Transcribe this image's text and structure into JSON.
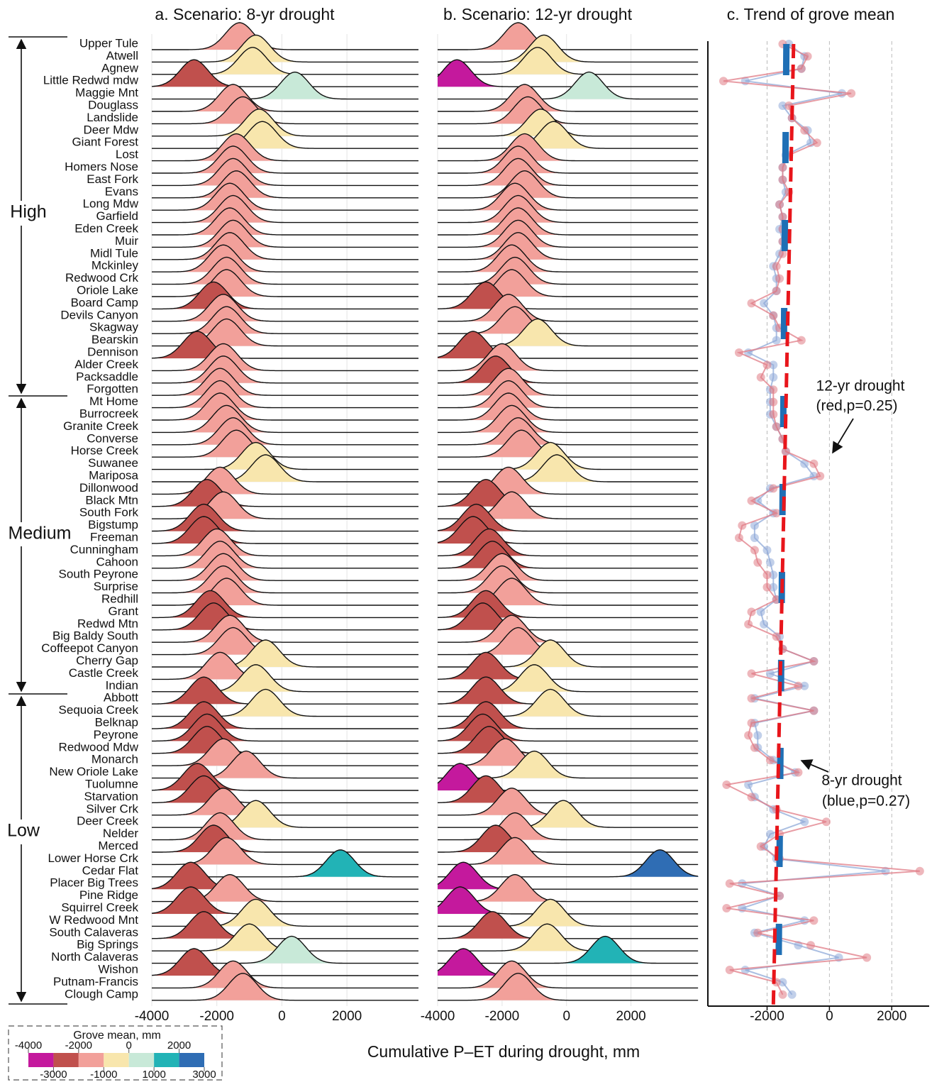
{
  "chart_data": [
    {
      "type": "ridgeline",
      "title": "a. Scenario: 8-yr drought",
      "categories": [
        "Upper Tule",
        "Atwell",
        "Agnew",
        "Little Redwd mdw",
        "Maggie Mnt",
        "Douglass",
        "Landslide",
        "Deer Mdw",
        "Giant Forest",
        "Lost",
        "Homers Nose",
        "East Fork",
        "Evans",
        "Long Mdw",
        "Garfield",
        "Eden Creek",
        "Muir",
        "Midl Tule",
        "Mckinley",
        "Redwood Crk",
        "Oriole Lake",
        "Board Camp",
        "Devils Canyon",
        "Skagway",
        "Bearskin",
        "Dennison",
        "Alder Creek",
        "Packsaddle",
        "Forgotten",
        "Mt Home",
        "Burrocreek",
        "Granite Creek",
        "Converse",
        "Horse Creek",
        "Suwanee",
        "Mariposa",
        "Dillonwood",
        "Black Mtn",
        "South Fork",
        "Bigstump",
        "Freeman",
        "Cunningham",
        "Cahoon",
        "South Peyrone",
        "Surprise",
        "Redhill",
        "Grant",
        "Redwd Mtn",
        "Big Baldy South",
        "Coffeepot Canyon",
        "Cherry Gap",
        "Castle Creek",
        "Indian",
        "Abbott",
        "Sequoia Creek",
        "Belknap",
        "Peyrone",
        "Redwood Mdw",
        "Monarch",
        "New Oriole Lake",
        "Tuolumne",
        "Starvation",
        "Silver Crk",
        "Deer Creek",
        "Nelder",
        "Merced",
        "Lower Horse Crk",
        "Cedar Flat",
        "Placer Big Trees",
        "Pine Ridge",
        "Squirrel Creek",
        "W Redwood Mnt",
        "South Calaveras",
        "Big Springs",
        "North Calaveras",
        "Wishon",
        "Putnam-Francis",
        "Clough Camp"
      ],
      "values": [
        -1300,
        -800,
        -900,
        -2700,
        400,
        -1500,
        -1200,
        -700,
        -600,
        -1400,
        -1500,
        -1500,
        -1400,
        -1600,
        -1500,
        -1600,
        -1500,
        -1600,
        -1800,
        -1700,
        -1700,
        -2100,
        -1800,
        -1700,
        -1700,
        -2600,
        -1800,
        -1800,
        -1900,
        -1900,
        -1900,
        -1700,
        -1500,
        -1400,
        -800,
        -500,
        -1900,
        -2300,
        -1800,
        -2400,
        -2400,
        -2000,
        -1900,
        -1800,
        -1800,
        -1700,
        -2200,
        -2100,
        -1600,
        -1500,
        -500,
        -1900,
        -800,
        -2400,
        -500,
        -2400,
        -2300,
        -2300,
        -1800,
        -1100,
        -2600,
        -2400,
        -1800,
        -800,
        -1900,
        -2100,
        -1700,
        1800,
        -2800,
        -1600,
        -2800,
        -800,
        -2400,
        -1000,
        300,
        -2700,
        -1500,
        -1200
      ],
      "xlim": [
        -4000,
        4200
      ],
      "xticks": [
        -4000,
        -2000,
        0,
        2000
      ],
      "groups": [
        "High",
        "Medium",
        "Low"
      ],
      "legend": {
        "title": "Grove mean, mm",
        "bins": [
          -4000,
          -3000,
          -2000,
          -1000,
          0,
          1000,
          2000,
          3000
        ],
        "colors": [
          "#c4199d",
          "#c0504d",
          "#f2a09a",
          "#f8e6ad",
          "#c8e9d8",
          "#22b3b6",
          "#2f6db4"
        ]
      }
    },
    {
      "type": "ridgeline",
      "title": "b. Scenario: 12-yr drought",
      "values": [
        -1500,
        -700,
        -900,
        -3400,
        700,
        -1300,
        -1200,
        -800,
        -400,
        -1300,
        -1500,
        -1500,
        -1300,
        -1600,
        -1500,
        -1500,
        -1500,
        -1500,
        -1700,
        -1600,
        -1700,
        -2500,
        -1800,
        -1600,
        -900,
        -2900,
        -2000,
        -2200,
        -1800,
        -1800,
        -1800,
        -1700,
        -1500,
        -1400,
        -500,
        -300,
        -1800,
        -2500,
        -1700,
        -2800,
        -2900,
        -2400,
        -2300,
        -2000,
        -2000,
        -1700,
        -2500,
        -2600,
        -1700,
        -1500,
        -500,
        -2500,
        -1000,
        -2500,
        -500,
        -2500,
        -2600,
        -2400,
        -1900,
        -1000,
        -3300,
        -2500,
        -1700,
        -100,
        -1600,
        -2200,
        -1600,
        2900,
        -3200,
        -1600,
        -3300,
        -500,
        -2300,
        -600,
        1200,
        -3200,
        -1700,
        -1500
      ],
      "xlim": [
        -4000,
        4100
      ],
      "xticks": [
        -4000,
        -2000,
        0,
        2000
      ],
      "x_label": "Cumulative P–ET during drought, mm"
    },
    {
      "type": "trend",
      "title": "c. Trend of grove mean",
      "series": [
        {
          "color": "#8fa9d8",
          "line_color": "#1f6fb5",
          "trend": [
            -1380,
            -1640
          ]
        },
        {
          "color": "#e07b85",
          "line_color": "#e8151b",
          "trend": [
            -1150,
            -1800
          ]
        }
      ],
      "xlim": [
        -3900,
        3200
      ],
      "xticks": [
        -2000,
        0,
        2000
      ],
      "annotations": [
        "12-yr drought",
        "(red,p=0.25)",
        "8-yr drought",
        "(blue,p=0.27)"
      ]
    }
  ]
}
